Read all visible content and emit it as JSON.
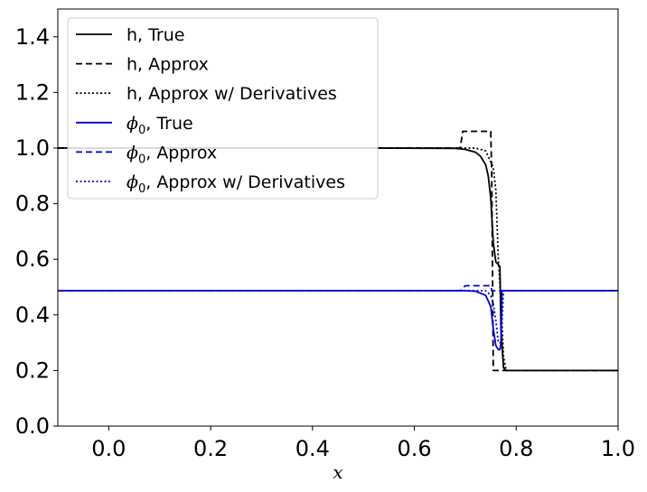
{
  "chart_data": {
    "type": "line",
    "title": "",
    "xlabel": "x",
    "ylabel": "",
    "xlim": [
      -0.1,
      1.0
    ],
    "ylim": [
      0.0,
      1.5
    ],
    "xticks": [
      "0.0",
      "0.2",
      "0.4",
      "0.6",
      "0.8",
      "1.0"
    ],
    "yticks": [
      "0.0",
      "0.2",
      "0.4",
      "0.6",
      "0.8",
      "1.0",
      "1.2",
      "1.4"
    ],
    "grid": false,
    "legend_position": "top-left",
    "series": [
      {
        "name": "h, True",
        "color": "#000000",
        "style": "solid",
        "x": [
          -0.1,
          0.5,
          0.68,
          0.7,
          0.72,
          0.73,
          0.74,
          0.745,
          0.75,
          0.755,
          0.76,
          0.763,
          0.765,
          0.768,
          0.77,
          0.775,
          0.78,
          1.0
        ],
        "y": [
          1.0,
          1.0,
          0.999,
          0.995,
          0.985,
          0.97,
          0.94,
          0.9,
          0.82,
          0.66,
          0.59,
          0.585,
          0.58,
          0.575,
          0.35,
          0.21,
          0.2,
          0.2
        ]
      },
      {
        "name": "h, Approx",
        "color": "#000000",
        "style": "dashed",
        "x": [
          -0.1,
          0.69,
          0.695,
          0.75,
          0.752,
          0.755,
          1.0
        ],
        "y": [
          1.0,
          1.0,
          1.06,
          1.06,
          0.9,
          0.2,
          0.2
        ]
      },
      {
        "name": "h, Approx w/ Derivatives",
        "color": "#000000",
        "style": "dotted",
        "x": [
          -0.1,
          0.72,
          0.74,
          0.75,
          0.755,
          0.76,
          0.765,
          0.77,
          0.775,
          0.78,
          1.0
        ],
        "y": [
          1.0,
          1.0,
          0.99,
          0.95,
          0.93,
          0.85,
          0.6,
          0.45,
          0.25,
          0.2,
          0.2
        ]
      },
      {
        "name": "$\\phi_0$, True",
        "label_main": "ϕ",
        "label_sub": "0",
        "label_rest": ", True",
        "color": "#0000cc",
        "style": "solid",
        "x": [
          -0.1,
          0.7,
          0.72,
          0.74,
          0.75,
          0.755,
          0.76,
          0.765,
          0.768,
          0.77,
          0.772,
          1.0
        ],
        "y": [
          0.487,
          0.487,
          0.485,
          0.47,
          0.43,
          0.35,
          0.29,
          0.275,
          0.275,
          0.3,
          0.487,
          0.487
        ]
      },
      {
        "name": "$\\phi_0$, Approx",
        "label_main": "ϕ",
        "label_sub": "0",
        "label_rest": ", Approx",
        "color": "#0000cc",
        "style": "dashed",
        "x": [
          -0.1,
          0.69,
          0.7,
          0.75,
          0.752,
          1.0
        ],
        "y": [
          0.487,
          0.487,
          0.505,
          0.505,
          0.487,
          0.487
        ]
      },
      {
        "name": "$\\phi_0$, Approx w/ Derivatives",
        "label_main": "ϕ",
        "label_sub": "0",
        "label_rest": ", Approx w/ Derivatives",
        "color": "#0000cc",
        "style": "dotted",
        "x": [
          -0.1,
          0.74,
          0.75,
          0.755,
          0.76,
          0.765,
          0.77,
          0.775,
          1.0
        ],
        "y": [
          0.487,
          0.487,
          0.47,
          0.44,
          0.38,
          0.3,
          0.3,
          0.487,
          0.487
        ]
      }
    ]
  }
}
